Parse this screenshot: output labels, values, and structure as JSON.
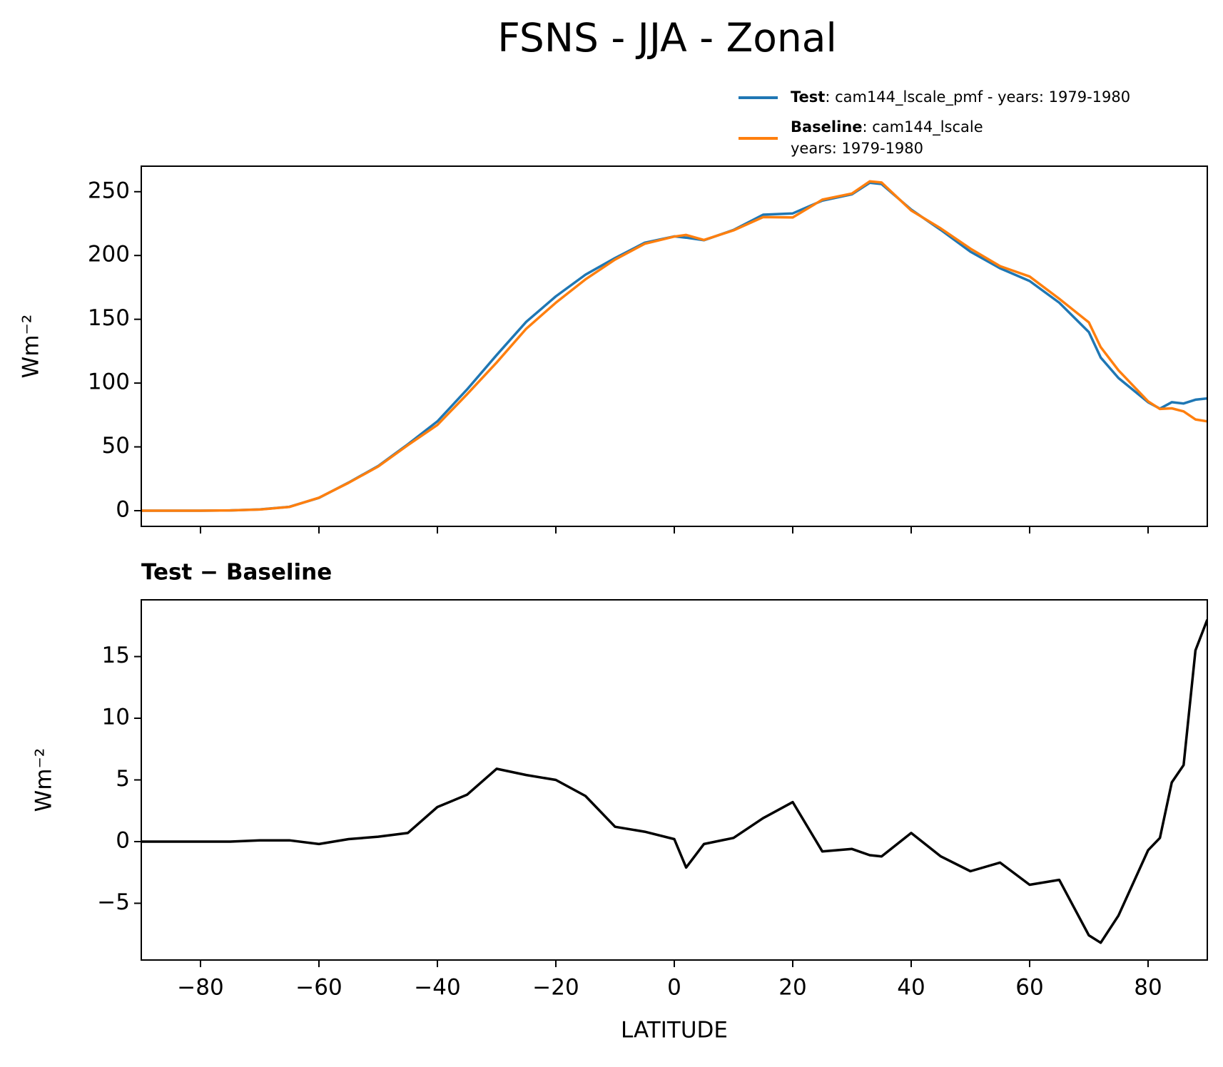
{
  "chart_data": [
    {
      "type": "line",
      "title": "FSNS - JJA - Zonal",
      "ylabel": "Wm⁻²",
      "x": [
        -90,
        -85,
        -80,
        -75,
        -70,
        -65,
        -60,
        -55,
        -50,
        -45,
        -40,
        -35,
        -30,
        -25,
        -20,
        -15,
        -10,
        -5,
        0,
        2,
        5,
        10,
        15,
        20,
        25,
        30,
        33,
        35,
        40,
        45,
        50,
        55,
        60,
        65,
        70,
        72,
        75,
        80,
        82,
        84,
        86,
        88,
        90
      ],
      "series": [
        {
          "name": "Test",
          "legend_lines": [
            ": cam144_lscale_pmf - years: 1979-1980"
          ],
          "color": "#1f77b4",
          "values": [
            0,
            0,
            0,
            0.2,
            1,
            3,
            10,
            22,
            35,
            52,
            70,
            95,
            122,
            148,
            168,
            185,
            198,
            210,
            215,
            214,
            212,
            220,
            232,
            233,
            243,
            248,
            257,
            256,
            236,
            220,
            203,
            190,
            180,
            163,
            140,
            120,
            104,
            85,
            80,
            85,
            84,
            87,
            88
          ]
        },
        {
          "name": "Baseline",
          "legend_lines": [
            ": cam144_lscale",
            "years: 1979-1980"
          ],
          "color": "#ff7f0e",
          "values": [
            0,
            0,
            0,
            0.2,
            0.9,
            2.9,
            10.2,
            21.8,
            34.6,
            51.3,
            67.2,
            91.2,
            116.1,
            142.6,
            163,
            181.3,
            196.8,
            209.2,
            214.8,
            216.1,
            212.2,
            219.7,
            230.1,
            229.8,
            243.8,
            248.6,
            258.1,
            257.2,
            235.3,
            221.2,
            205.4,
            191.7,
            183.5,
            166.1,
            147.6,
            128.2,
            110,
            85.7,
            79.7,
            80.2,
            77.8,
            71.5,
            70
          ]
        }
      ],
      "xlim": [
        -90,
        90
      ],
      "xticks": [
        -80,
        -60,
        -40,
        -20,
        0,
        20,
        40,
        60,
        80
      ],
      "ylim": [
        -12.3,
        270
      ],
      "yticks": [
        0,
        50,
        100,
        150,
        200,
        250
      ],
      "legend": "upper right"
    },
    {
      "type": "line",
      "subtitle": "Test − Baseline",
      "ylabel": "Wm⁻²",
      "xlabel": "LATITUDE",
      "x": [
        -90,
        -85,
        -80,
        -75,
        -70,
        -65,
        -60,
        -55,
        -50,
        -45,
        -40,
        -35,
        -30,
        -25,
        -20,
        -15,
        -10,
        -5,
        0,
        2,
        5,
        10,
        15,
        20,
        25,
        30,
        33,
        35,
        40,
        45,
        50,
        55,
        60,
        65,
        70,
        72,
        75,
        80,
        82,
        84,
        86,
        88,
        90
      ],
      "series": [
        {
          "color": "#000000",
          "values": [
            0,
            0,
            0,
            0,
            0.1,
            0.1,
            -0.2,
            0.2,
            0.4,
            0.7,
            2.8,
            3.8,
            5.9,
            5.4,
            5,
            3.7,
            1.2,
            0.8,
            0.2,
            -2.1,
            -0.2,
            0.3,
            1.9,
            3.2,
            -0.8,
            -0.6,
            -1.1,
            -1.2,
            0.7,
            -1.2,
            -2.4,
            -1.7,
            -3.5,
            -3.1,
            -7.6,
            -8.2,
            -6,
            -0.7,
            0.3,
            4.8,
            6.2,
            15.5,
            18
          ]
        }
      ],
      "xlim": [
        -90,
        90
      ],
      "xticks": [
        {
          "value": -80,
          "label": "−80"
        },
        {
          "value": -60,
          "label": "−60"
        },
        {
          "value": -40,
          "label": "−40"
        },
        {
          "value": -20,
          "label": "−20"
        },
        0,
        20,
        40,
        60,
        80
      ],
      "ylim": [
        -9.6,
        19.6
      ],
      "yticks": [
        {
          "value": -5,
          "label": "−5"
        },
        0,
        5,
        10,
        15
      ]
    }
  ]
}
